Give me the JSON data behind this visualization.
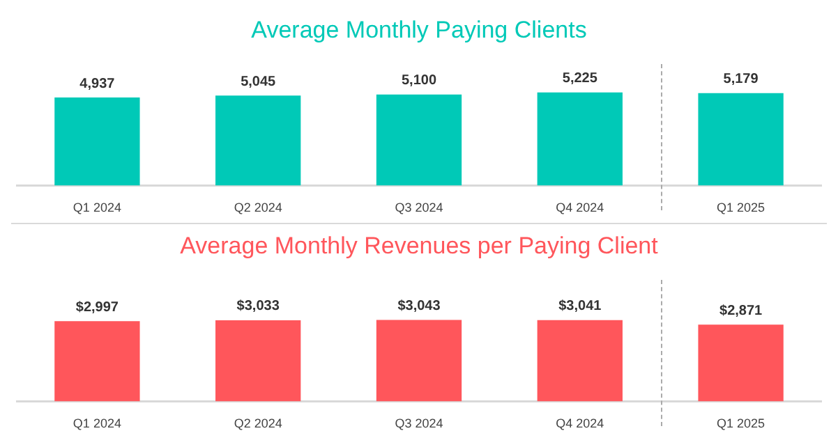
{
  "chart_data": [
    {
      "type": "bar",
      "title": "Average Monthly Paying Clients",
      "categories": [
        "Q1 2024",
        "Q2 2024",
        "Q3 2024",
        "Q4 2024",
        "Q1 2025"
      ],
      "values": [
        4937,
        5045,
        5100,
        5225,
        5179
      ],
      "value_labels": [
        "4,937",
        "5,045",
        "5,100",
        "5,225",
        "5,179"
      ],
      "color": "#00c9b7",
      "tick_labels": "x"
    },
    {
      "type": "bar",
      "title": "Average Monthly Revenues per Paying Client",
      "categories": [
        "Q1 2024",
        "Q2 2024",
        "Q3 2024",
        "Q4 2024",
        "Q1 2025"
      ],
      "values": [
        2997,
        3033,
        3043,
        3041,
        2871
      ],
      "value_labels": [
        "$2,997",
        "$3,033",
        "$3,043",
        "$3,041",
        "$2,871"
      ],
      "color": "#ff565b",
      "tick_labels": "x"
    }
  ]
}
